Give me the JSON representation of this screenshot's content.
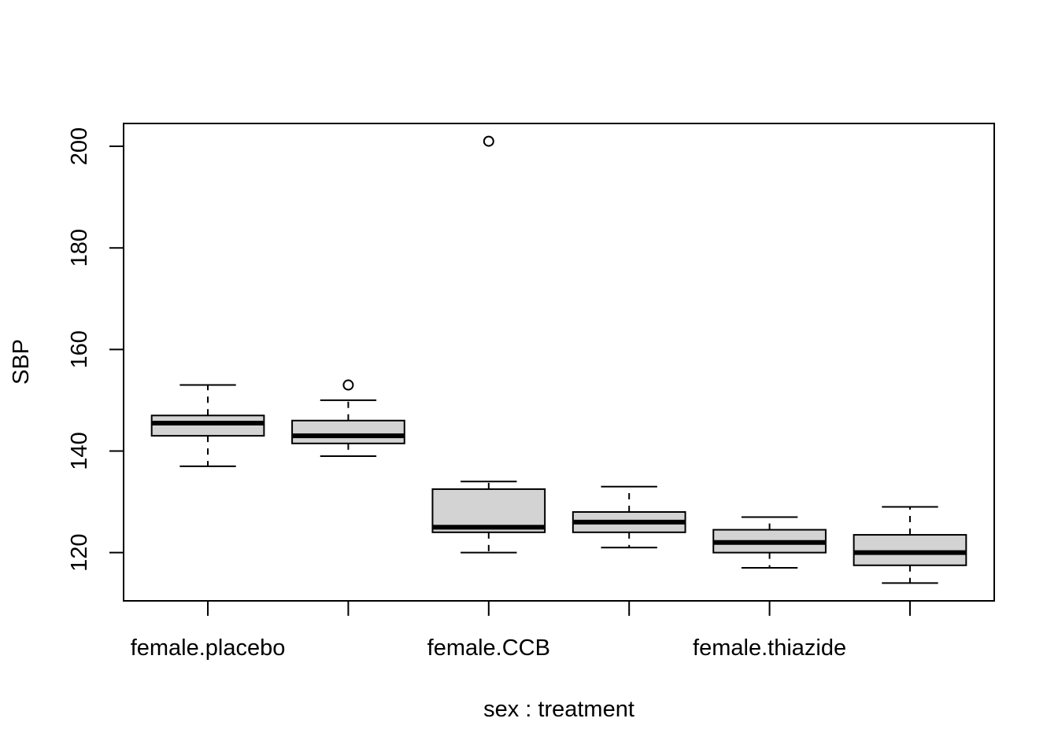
{
  "chart_data": {
    "type": "boxplot",
    "xlabel": "sex : treatment",
    "ylabel": "SBP",
    "ylim": [
      110.5,
      204.5
    ],
    "y_ticks": [
      120,
      140,
      160,
      180,
      200
    ],
    "y_tick_labels": [
      "120",
      "140",
      "160",
      "180",
      "200"
    ],
    "x_tick_labels": [
      "female.placebo",
      "",
      "female.CCB",
      "",
      "female.thiazide",
      ""
    ],
    "grid": false,
    "legend": "none",
    "box_fill": "#d3d3d3",
    "line_color": "#000000",
    "groups": [
      {
        "label": "female.placebo",
        "whisker_low": 137,
        "q1": 143,
        "median": 145.5,
        "q3": 147,
        "whisker_high": 153,
        "outliers": []
      },
      {
        "label": "",
        "whisker_low": 139,
        "q1": 141.5,
        "median": 143,
        "q3": 146,
        "whisker_high": 150,
        "outliers": [
          153
        ]
      },
      {
        "label": "female.CCB",
        "whisker_low": 120,
        "q1": 124,
        "median": 125,
        "q3": 132.5,
        "whisker_high": 134,
        "outliers": [
          201
        ]
      },
      {
        "label": "",
        "whisker_low": 121,
        "q1": 124,
        "median": 126,
        "q3": 128,
        "whisker_high": 133,
        "outliers": []
      },
      {
        "label": "female.thiazide",
        "whisker_low": 117,
        "q1": 120,
        "median": 122,
        "q3": 124.5,
        "whisker_high": 127,
        "outliers": []
      },
      {
        "label": "",
        "whisker_low": 114,
        "q1": 117.5,
        "median": 120,
        "q3": 123.5,
        "whisker_high": 129,
        "outliers": []
      }
    ]
  }
}
